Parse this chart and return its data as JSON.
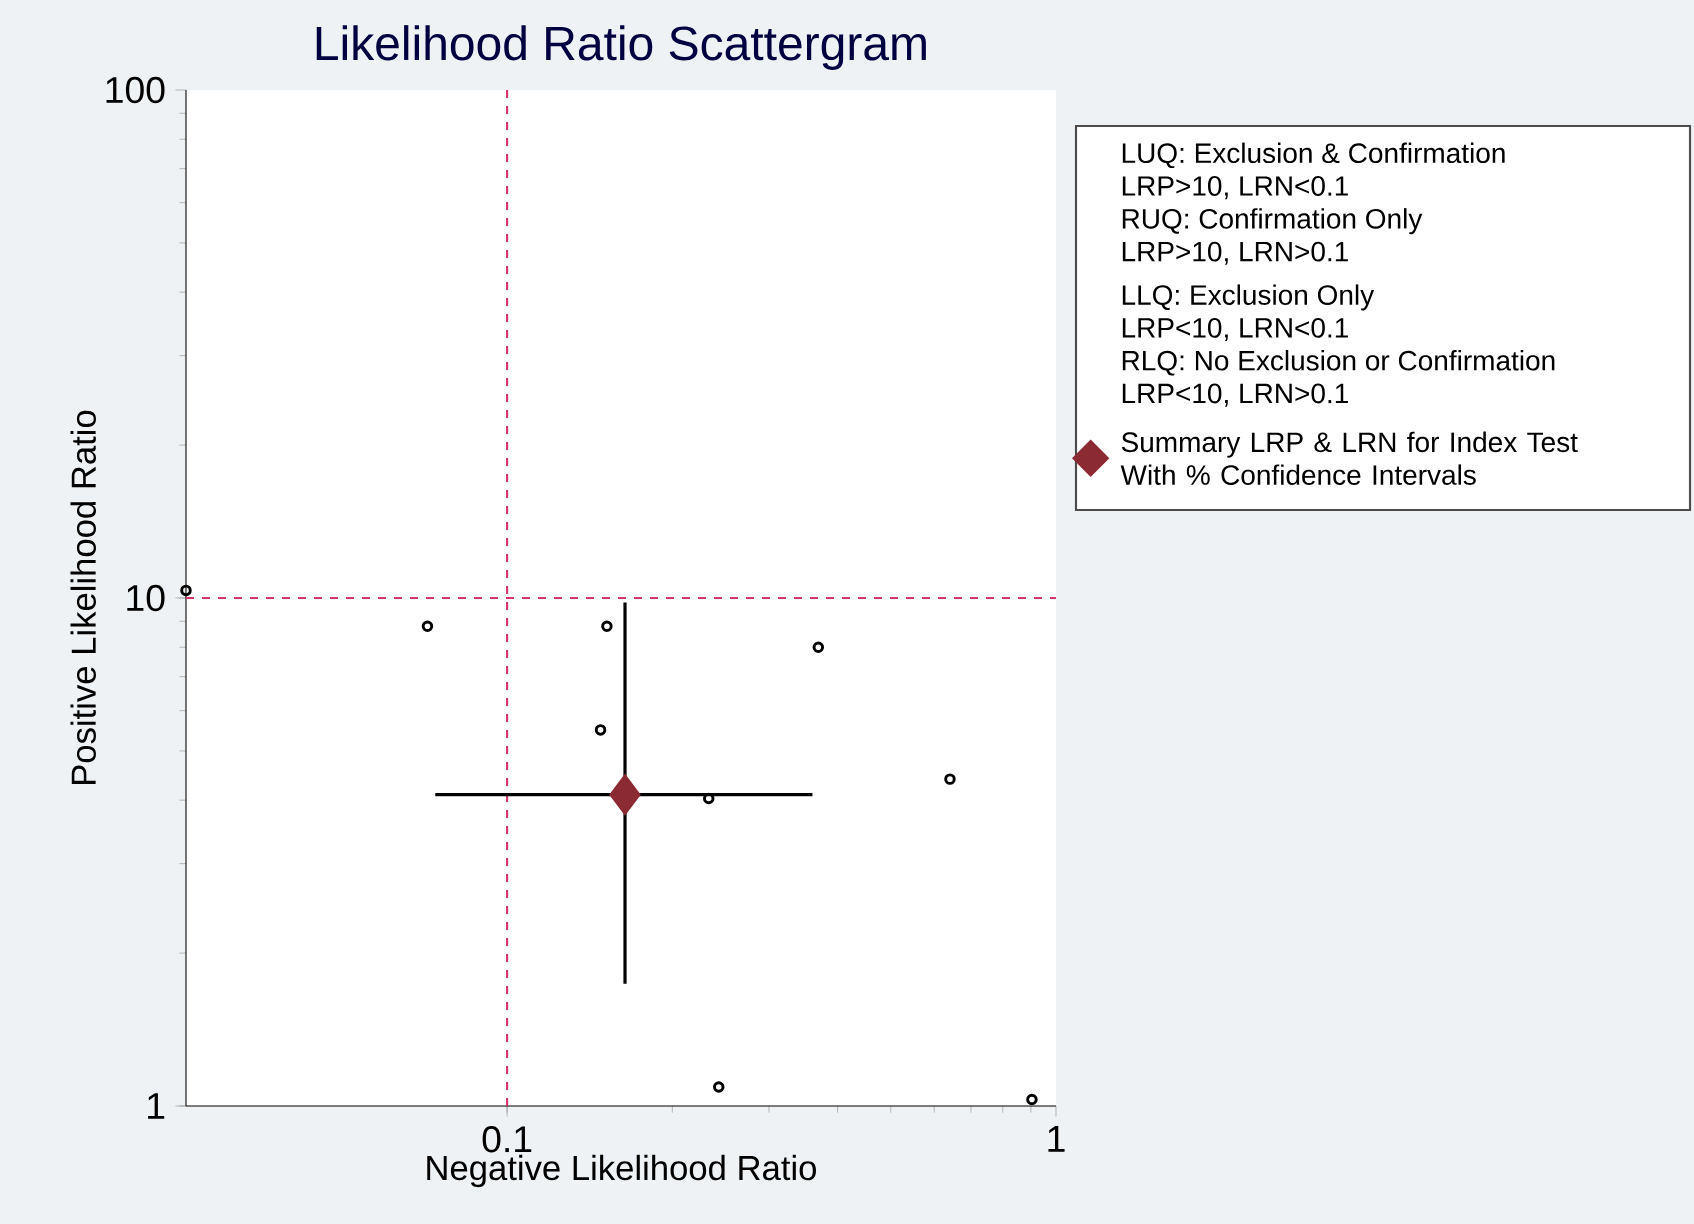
{
  "chart_data": {
    "type": "scatter",
    "title": "Likelihood Ratio Scattergram",
    "xlabel": "Negative Likelihood Ratio",
    "ylabel": "Positive Likelihood Ratio",
    "log": "xy",
    "xlim": [
      0.026,
      1
    ],
    "ylim": [
      1,
      100
    ],
    "xticks": [
      0.1,
      1
    ],
    "yticks": [
      1,
      10,
      100
    ],
    "grid": false,
    "legend": "right",
    "ref_lines": [
      {
        "axis": "x",
        "value": 0.1,
        "color": "#d6336c",
        "line_style": "dashed"
      },
      {
        "axis": "y",
        "value": 10,
        "color": "#d6336c",
        "line_style": "dashed"
      }
    ],
    "annotations": [
      "LUQ: Exclusion & Confirmation",
      "LRP>10, LRN<0.1",
      "RUQ: Confirmation Only",
      "LRP>10, LRN>0.1",
      "LLQ: Exclusion Only",
      "LRP<10, LRN<0.1",
      "RLQ: No Exclusion or Confirmation",
      "LRP<10, LRN>0.1"
    ],
    "series": [
      {
        "marker": "circle",
        "color": "#000000",
        "x": [
          0.026,
          0.0716,
          0.152,
          0.369,
          0.148,
          0.641,
          0.233,
          0.243,
          0.904
        ],
        "values": [
          10.35,
          8.8,
          8.8,
          8.0,
          5.5,
          4.4,
          4.03,
          1.09,
          1.03
        ]
      },
      {
        "marker": "diamond",
        "name": "Summary LRP & LRN for Index Test With  % Confidence Intervals",
        "color": "#8b2a32",
        "x": [
          0.164
        ],
        "values": [
          4.1
        ],
        "errors": [
          [
            1.74,
            9.8
          ]
        ],
        "xerrors": [
          [
            0.074,
            0.36
          ]
        ]
      }
    ]
  }
}
